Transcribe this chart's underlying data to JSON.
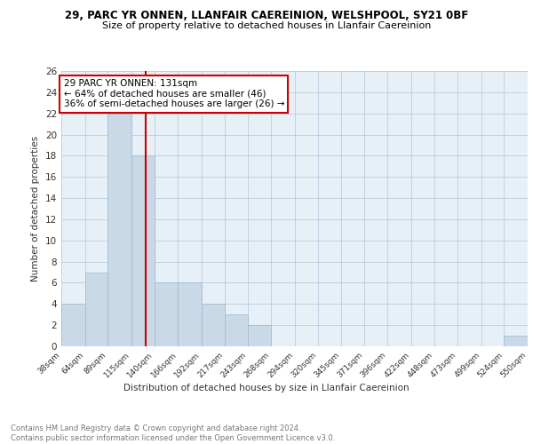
{
  "title": "29, PARC YR ONNEN, LLANFAIR CAEREINION, WELSHPOOL, SY21 0BF",
  "subtitle": "Size of property relative to detached houses in Llanfair Caereinion",
  "xlabel": "Distribution of detached houses by size in Llanfair Caereinion",
  "ylabel": "Number of detached properties",
  "bin_labels": [
    "38sqm",
    "64sqm",
    "89sqm",
    "115sqm",
    "140sqm",
    "166sqm",
    "192sqm",
    "217sqm",
    "243sqm",
    "268sqm",
    "294sqm",
    "320sqm",
    "345sqm",
    "371sqm",
    "396sqm",
    "422sqm",
    "448sqm",
    "473sqm",
    "499sqm",
    "524sqm",
    "550sqm"
  ],
  "bar_values": [
    4,
    7,
    22,
    18,
    6,
    6,
    4,
    3,
    2,
    0,
    0,
    0,
    0,
    0,
    0,
    0,
    0,
    0,
    0,
    1,
    0
  ],
  "bar_color": "#c9d9e8",
  "bar_edge_color": "#a0b8cc",
  "reference_line_x": 131,
  "bin_edges": [
    38,
    64,
    89,
    115,
    140,
    166,
    192,
    217,
    243,
    268,
    294,
    320,
    345,
    371,
    396,
    422,
    448,
    473,
    499,
    524,
    550
  ],
  "annotation_title": "29 PARC YR ONNEN: 131sqm",
  "annotation_line1": "← 64% of detached houses are smaller (46)",
  "annotation_line2": "36% of semi-detached houses are larger (26) →",
  "annotation_box_color": "#cc0000",
  "ylim": [
    0,
    26
  ],
  "yticks": [
    0,
    2,
    4,
    6,
    8,
    10,
    12,
    14,
    16,
    18,
    20,
    22,
    24,
    26
  ],
  "footnote": "Contains HM Land Registry data © Crown copyright and database right 2024.\nContains public sector information licensed under the Open Government Licence v3.0.",
  "title_fontsize": 8.5,
  "subtitle_fontsize": 8,
  "grid_color": "#aec6d8",
  "background_color": "#e8f0f7"
}
